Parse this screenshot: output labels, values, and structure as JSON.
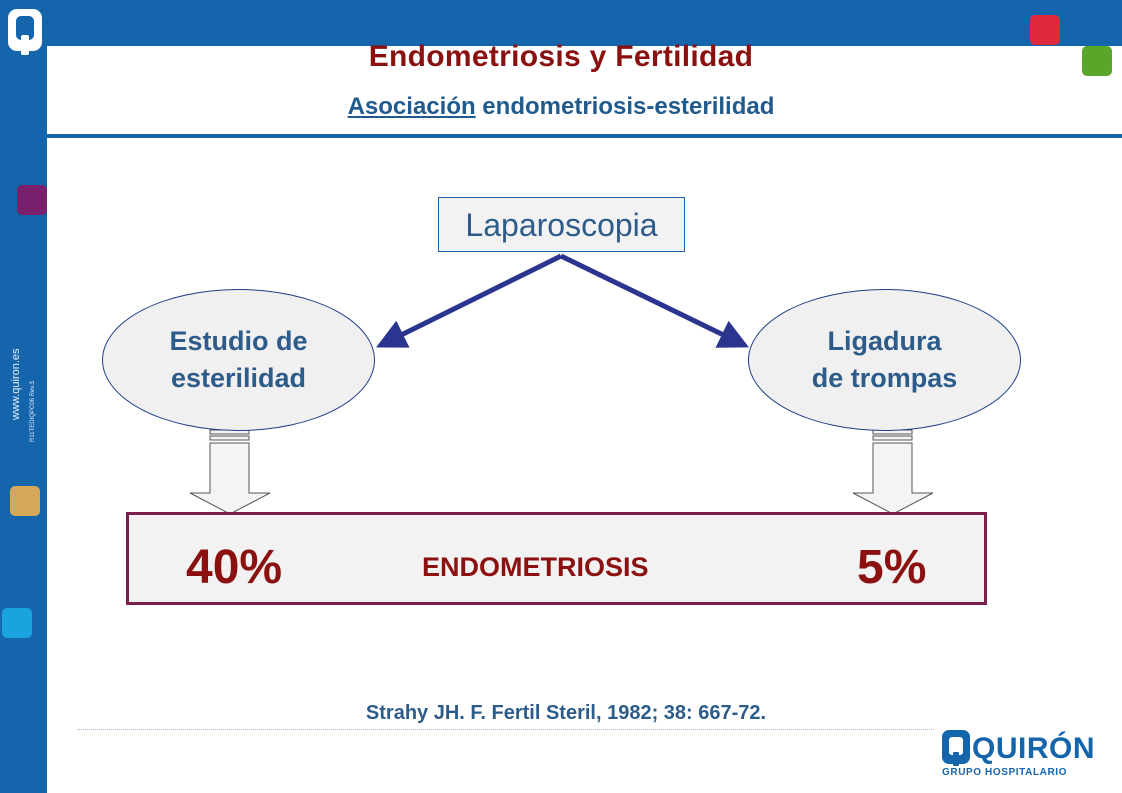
{
  "slide": {
    "title": "Endometriosis y Fertilidad",
    "subtitle_underlined": "Asociación",
    "subtitle_rest": " endometriosis-esterilidad",
    "website": "www.quiron.es",
    "code": "R11TEDIQPC06 Rev.3"
  },
  "diagram": {
    "root": "Laparoscopia",
    "left_node_line1": "Estudio de",
    "left_node_line2": "esterilidad",
    "right_node_line1": "Ligadura",
    "right_node_line2": "de trompas",
    "result_label": "ENDOMETRIOSIS",
    "left_value": "40%",
    "right_value": "5%"
  },
  "citation": "Strahy JH. F. Fertil Steril, 1982; 38: 667-72.",
  "brand": {
    "name": "QUIRÓN",
    "tagline": "GRUPO HOSPITALARIO"
  },
  "colors": {
    "frame_blue": "#1565ad",
    "title_red": "#8b1111",
    "arrow_navy": "#2b3590",
    "square_red": "#e0283c",
    "square_green": "#5aa62a",
    "square_purple": "#7a1f6b",
    "square_gold": "#d4a856",
    "square_cyan": "#1aa3df"
  }
}
